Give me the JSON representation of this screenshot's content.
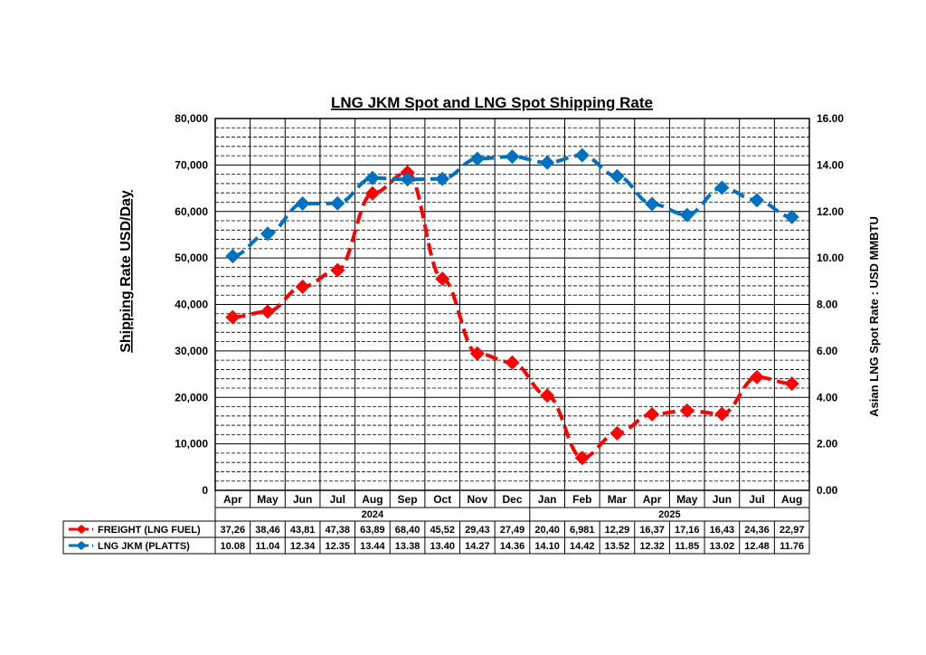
{
  "chart_data": {
    "type": "line",
    "title": "LNG JKM Spot and LNG Spot Shipping Rate",
    "ylabel_left": "Shipping Rate USD/Day",
    "ylabel_right": "Asian LNG Spot Rate : USD MMBTU",
    "left_axis": {
      "ylim": [
        0,
        80000
      ],
      "ticks": [
        "0",
        "10,000",
        "20,000",
        "30,000",
        "40,000",
        "50,000",
        "60,000",
        "70,000",
        "80,000"
      ]
    },
    "right_axis": {
      "ylim": [
        0,
        16
      ],
      "ticks": [
        "0.00",
        "2.00",
        "4.00",
        "6.00",
        "8.00",
        "10.00",
        "12.00",
        "14.00",
        "16.00"
      ]
    },
    "categories": [
      "Apr",
      "May",
      "Jun",
      "Jul",
      "Aug",
      "Sep",
      "Oct",
      "Nov",
      "Dec",
      "Jan",
      "Feb",
      "Mar",
      "Apr",
      "May",
      "Jun",
      "Jul",
      "Aug"
    ],
    "year_labels": [
      "2024",
      "2025"
    ],
    "grid": true,
    "series": [
      {
        "name": "FREIGHT (LNG FUEL)",
        "axis": "left",
        "color": "#ff0000",
        "values": [
          37260,
          38460,
          43810,
          47380,
          63890,
          68400,
          45520,
          29430,
          27490,
          20400,
          6981,
          12290,
          16370,
          17160,
          16430,
          24360,
          22970
        ],
        "table_values": [
          "37,26",
          "38,46",
          "43,81",
          "47,38",
          "63,89",
          "68,40",
          "45,52",
          "29,43",
          "27,49",
          "20,40",
          "6,981",
          "12,29",
          "16,37",
          "17,16",
          "16,43",
          "24,36",
          "22,97"
        ]
      },
      {
        "name": "LNG JKM (PLATTS)",
        "axis": "right",
        "color": "#0070c0",
        "values": [
          10.08,
          11.04,
          12.34,
          12.35,
          13.44,
          13.38,
          13.4,
          14.27,
          14.36,
          14.1,
          14.42,
          13.52,
          12.32,
          11.85,
          13.02,
          12.48,
          11.76
        ],
        "table_values": [
          "10.08",
          "11.04",
          "12.34",
          "12.35",
          "13.44",
          "13.38",
          "13.40",
          "14.27",
          "14.36",
          "14.10",
          "14.42",
          "13.52",
          "12.32",
          "11.85",
          "13.02",
          "12.48",
          "11.76"
        ]
      }
    ]
  }
}
